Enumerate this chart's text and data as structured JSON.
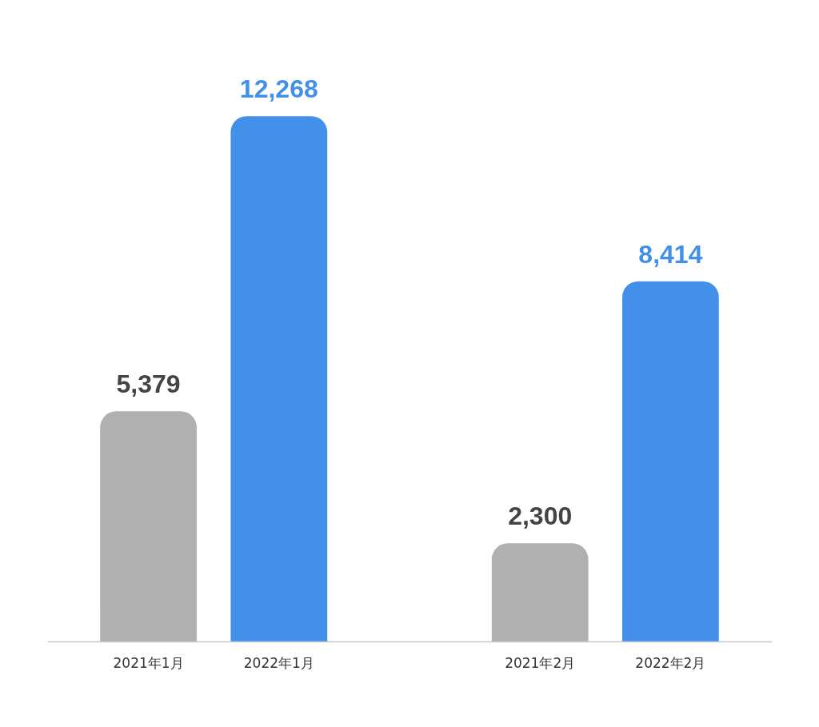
{
  "chart_data": {
    "type": "bar",
    "categories": [
      "2021年1月",
      "2022年1月",
      null,
      "2021年2月",
      "2022年2月"
    ],
    "values": [
      5379,
      12268,
      null,
      2300,
      8414
    ],
    "colors": [
      "#b0b0b0",
      "#4290ea",
      "#b0b0b0",
      "#b0b0b0",
      "#4290ea"
    ],
    "value_labels": [
      "5,379",
      "12,268",
      null,
      "2,300",
      "8,414"
    ],
    "grid": false,
    "legend": false
  }
}
